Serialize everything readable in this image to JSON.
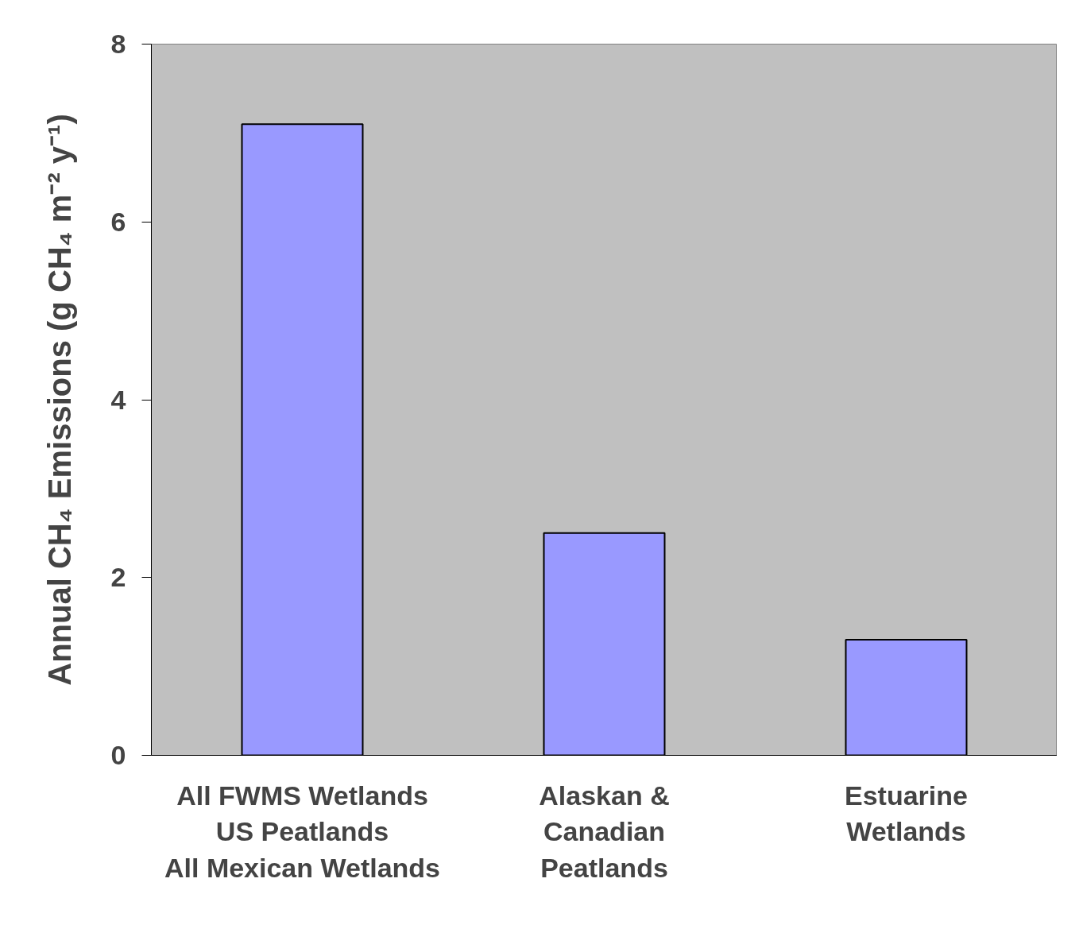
{
  "chart_data": {
    "type": "bar",
    "ylabel": "Annual CH₄ Emissions (g CH₄ m⁻² y⁻¹)",
    "categories": [
      "All FWMS Wetlands\nUS Peatlands\nAll Mexican Wetlands",
      "Alaskan &\nCanadian\nPeatlands",
      "Estuarine\nWetlands"
    ],
    "values": [
      7.1,
      2.5,
      1.3
    ],
    "color": "#9999ff",
    "ylim": [
      0,
      8
    ],
    "yticks": [
      0,
      2,
      4,
      6,
      8
    ],
    "grid": false
  }
}
